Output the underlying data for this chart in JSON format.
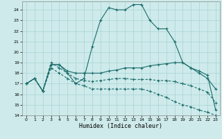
{
  "xlabel": "Humidex (Indice chaleur)",
  "xlim": [
    -0.5,
    23.5
  ],
  "ylim": [
    14,
    24.8
  ],
  "yticks": [
    14,
    15,
    16,
    17,
    18,
    19,
    20,
    21,
    22,
    23,
    24
  ],
  "xticks": [
    0,
    1,
    2,
    3,
    4,
    5,
    6,
    7,
    8,
    9,
    10,
    11,
    12,
    13,
    14,
    15,
    16,
    17,
    18,
    19,
    20,
    21,
    22,
    23
  ],
  "bg_color": "#ceeaea",
  "grid_color": "#a8d4d4",
  "line_color": "#1a6b6b",
  "line1_solid": [
    17.0,
    17.5,
    16.3,
    18.8,
    18.8,
    18.0,
    17.0,
    17.5,
    20.5,
    23.0,
    24.2,
    24.0,
    24.0,
    24.5,
    24.5,
    23.0,
    22.2,
    22.2,
    21.0,
    19.0,
    18.5,
    18.0,
    17.5,
    16.5
  ],
  "line2_solid": [
    17.0,
    17.5,
    16.3,
    18.8,
    18.8,
    18.2,
    18.0,
    18.0,
    18.0,
    18.0,
    18.2,
    18.3,
    18.5,
    18.5,
    18.5,
    18.7,
    18.8,
    18.9,
    19.0,
    19.0,
    18.5,
    18.2,
    17.8,
    14.5
  ],
  "line3_dashed": [
    17.0,
    17.5,
    16.3,
    19.0,
    18.5,
    18.0,
    17.5,
    17.3,
    17.2,
    17.3,
    17.4,
    17.5,
    17.5,
    17.4,
    17.4,
    17.4,
    17.3,
    17.3,
    17.2,
    17.0,
    16.8,
    16.5,
    16.2,
    15.2
  ],
  "line4_dashed": [
    17.0,
    17.5,
    16.3,
    18.5,
    18.0,
    17.5,
    17.0,
    16.8,
    16.5,
    16.5,
    16.5,
    16.5,
    16.5,
    16.5,
    16.5,
    16.3,
    16.0,
    15.7,
    15.3,
    15.0,
    14.8,
    14.5,
    14.3,
    14.0
  ]
}
